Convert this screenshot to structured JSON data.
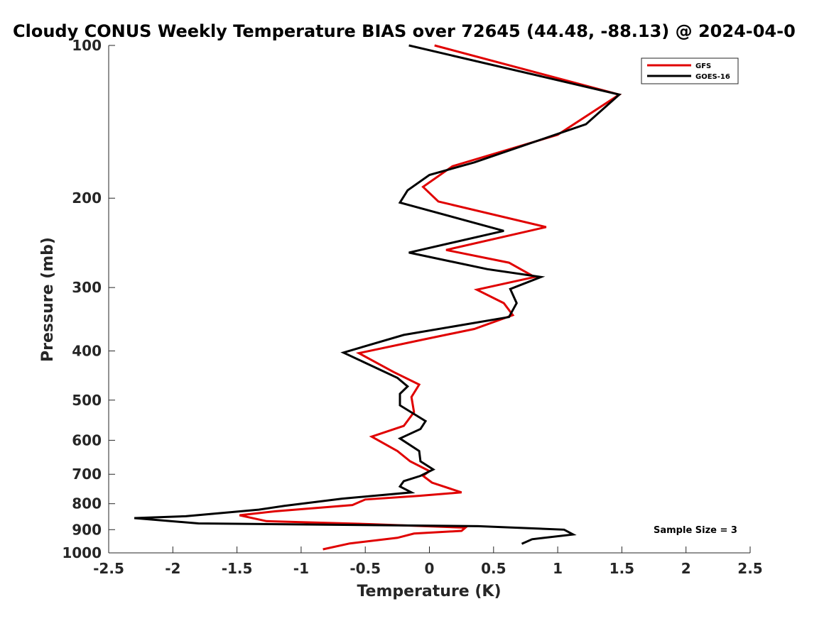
{
  "chart_data": {
    "type": "line",
    "title": "Cloudy CONUS Weekly Temperature BIAS over 72645 (44.48, -88.13) @ 2024-04-0",
    "xlabel": "Temperature (K)",
    "ylabel": "Pressure (mb)",
    "xlim": [
      -2.5,
      2.5
    ],
    "ylim": [
      100,
      1000
    ],
    "y_scale": "log",
    "y_reversed": true,
    "x_ticks": [
      "-2.5",
      "-2",
      "-1.5",
      "-1",
      "-0.5",
      "0",
      "0.5",
      "1",
      "1.5",
      "2",
      "2.5"
    ],
    "x_tick_values": [
      -2.5,
      -2,
      -1.5,
      -1,
      -0.5,
      0,
      0.5,
      1,
      1.5,
      2,
      2.5
    ],
    "y_ticks": [
      "100",
      "200",
      "300",
      "400",
      "500",
      "600",
      "700",
      "800",
      "900",
      "1000"
    ],
    "y_tick_values": [
      100,
      200,
      300,
      400,
      500,
      600,
      700,
      800,
      900,
      1000
    ],
    "grid": false,
    "legend_position": "top-right",
    "annotation": "Sample Size = 3",
    "series": [
      {
        "name": "GFS",
        "color": "#e00000",
        "points": [
          [
            0.04,
            100
          ],
          [
            1.48,
            125
          ],
          [
            1.0,
            150
          ],
          [
            0.18,
            173
          ],
          [
            -0.05,
            190
          ],
          [
            0.07,
            203
          ],
          [
            0.91,
            228
          ],
          [
            0.13,
            253
          ],
          [
            0.62,
            268
          ],
          [
            0.82,
            286
          ],
          [
            0.37,
            303
          ],
          [
            0.58,
            322
          ],
          [
            0.65,
            340
          ],
          [
            0.35,
            362
          ],
          [
            -0.05,
            380
          ],
          [
            -0.55,
            404
          ],
          [
            -0.28,
            440
          ],
          [
            -0.08,
            466
          ],
          [
            -0.14,
            493
          ],
          [
            -0.12,
            528
          ],
          [
            -0.2,
            562
          ],
          [
            -0.45,
            590
          ],
          [
            -0.25,
            630
          ],
          [
            -0.15,
            660
          ],
          [
            0.0,
            690
          ],
          [
            -0.05,
            705
          ],
          [
            0.02,
            727
          ],
          [
            0.25,
            760
          ],
          [
            -0.08,
            772
          ],
          [
            -0.5,
            785
          ],
          [
            -0.6,
            805
          ],
          [
            -1.2,
            828
          ],
          [
            -1.48,
            843
          ],
          [
            -1.27,
            866
          ],
          [
            -0.45,
            878
          ],
          [
            0.28,
            892
          ],
          [
            0.25,
            905
          ],
          [
            -0.12,
            916
          ],
          [
            -0.25,
            934
          ],
          [
            -0.62,
            958
          ],
          [
            -0.83,
            984
          ]
        ]
      },
      {
        "name": "GOES-16",
        "color": "#000000",
        "points": [
          [
            -0.16,
            100
          ],
          [
            1.48,
            125
          ],
          [
            1.22,
            143
          ],
          [
            0.35,
            170
          ],
          [
            0.0,
            180
          ],
          [
            -0.17,
            193
          ],
          [
            -0.23,
            204
          ],
          [
            0.58,
            232
          ],
          [
            -0.16,
            256
          ],
          [
            0.45,
            276
          ],
          [
            0.87,
            286
          ],
          [
            0.63,
            302
          ],
          [
            0.68,
            322
          ],
          [
            0.62,
            343
          ],
          [
            -0.2,
            372
          ],
          [
            -0.67,
            403
          ],
          [
            -0.25,
            452
          ],
          [
            -0.17,
            470
          ],
          [
            -0.23,
            486
          ],
          [
            -0.23,
            512
          ],
          [
            -0.03,
            550
          ],
          [
            -0.07,
            570
          ],
          [
            -0.23,
            595
          ],
          [
            -0.08,
            630
          ],
          [
            -0.07,
            660
          ],
          [
            0.03,
            685
          ],
          [
            -0.07,
            705
          ],
          [
            -0.2,
            722
          ],
          [
            -0.23,
            740
          ],
          [
            -0.14,
            760
          ],
          [
            -0.68,
            782
          ],
          [
            -1.13,
            808
          ],
          [
            -1.33,
            822
          ],
          [
            -1.9,
            847
          ],
          [
            -2.3,
            854
          ],
          [
            -1.8,
            875
          ],
          [
            0.38,
            886
          ],
          [
            1.05,
            900
          ],
          [
            1.12,
            920
          ],
          [
            0.8,
            940
          ],
          [
            0.72,
            960
          ]
        ]
      }
    ]
  }
}
